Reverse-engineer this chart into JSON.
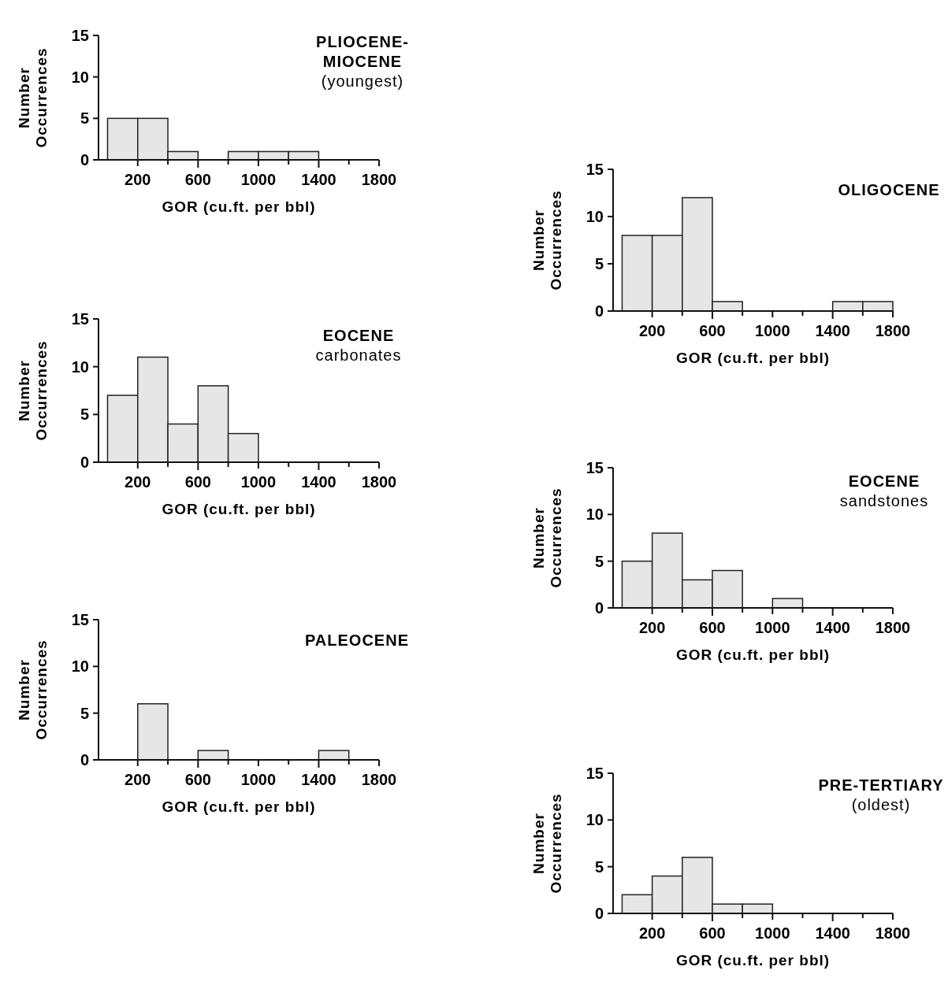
{
  "chart_data": [
    {
      "type": "histogram",
      "title": "PLIOCENE-\nMIOCENE",
      "subtitle": "(youngest)",
      "xlabel": "GOR (cu.ft. per bbl)",
      "ylabel": "Number\nOccurrences",
      "bins": [
        0,
        200,
        400,
        600,
        800,
        1000,
        1200,
        1400,
        1600,
        1800
      ],
      "values": [
        5,
        5,
        1,
        0,
        1,
        1,
        1,
        0,
        0
      ],
      "color": "#e6e6e6",
      "xlim": [
        -60,
        1800
      ],
      "ylim": [
        0,
        15
      ],
      "yticks": [
        0,
        5,
        10,
        15
      ],
      "xticks": [
        200,
        {
          "value": 400,
          "label": null
        },
        600,
        {
          "value": 800,
          "label": null
        },
        1000,
        {
          "value": 1200,
          "label": null
        },
        1400,
        {
          "value": 1600,
          "label": null
        },
        1800
      ],
      "grid": false
    },
    {
      "type": "histogram",
      "title": "OLIGOCENE",
      "xlabel": "GOR (cu.ft. per bbl)",
      "ylabel": "Number\nOccurrences",
      "bins": [
        0,
        200,
        400,
        600,
        800,
        1000,
        1200,
        1400,
        1600,
        1800
      ],
      "values": [
        8,
        8,
        12,
        1,
        0,
        0,
        0,
        1,
        1
      ],
      "color": "#e6e6e6",
      "xlim": [
        -60,
        1800
      ],
      "ylim": [
        0,
        15
      ],
      "yticks": [
        0,
        5,
        10,
        15
      ],
      "xticks": [
        200,
        {
          "value": 400,
          "label": null
        },
        600,
        {
          "value": 800,
          "label": null
        },
        1000,
        {
          "value": 1200,
          "label": null
        },
        1400,
        {
          "value": 1600,
          "label": null
        },
        1800
      ],
      "grid": false
    },
    {
      "type": "histogram",
      "title": "EOCENE",
      "subtitle": "carbonates",
      "xlabel": "GOR (cu.ft. per bbl)",
      "ylabel": "Number\nOccurrences",
      "bins": [
        0,
        200,
        400,
        600,
        800,
        1000,
        1200,
        1400,
        1600,
        1800
      ],
      "values": [
        7,
        11,
        4,
        8,
        3,
        0,
        0,
        0,
        0
      ],
      "color": "#e6e6e6",
      "xlim": [
        -60,
        1800
      ],
      "ylim": [
        0,
        15
      ],
      "yticks": [
        0,
        5,
        10,
        15
      ],
      "xticks": [
        200,
        {
          "value": 400,
          "label": null
        },
        600,
        {
          "value": 800,
          "label": null
        },
        1000,
        {
          "value": 1200,
          "label": null
        },
        1400,
        {
          "value": 1600,
          "label": null
        },
        1800
      ],
      "grid": false
    },
    {
      "type": "histogram",
      "title": "EOCENE",
      "subtitle": "sandstones",
      "xlabel": "GOR (cu.ft. per bbl)",
      "ylabel": "Number\nOccurrences",
      "bins": [
        0,
        200,
        400,
        600,
        800,
        1000,
        1200,
        1400,
        1600,
        1800
      ],
      "values": [
        5,
        8,
        3,
        4,
        0,
        1,
        0,
        0,
        0
      ],
      "color": "#e6e6e6",
      "xlim": [
        -60,
        1800
      ],
      "ylim": [
        0,
        15
      ],
      "yticks": [
        0,
        5,
        10,
        15
      ],
      "xticks": [
        200,
        {
          "value": 400,
          "label": null
        },
        600,
        {
          "value": 800,
          "label": null
        },
        1000,
        {
          "value": 1200,
          "label": null
        },
        1400,
        {
          "value": 1600,
          "label": null
        },
        1800
      ],
      "grid": false
    },
    {
      "type": "histogram",
      "title": "PALEOCENE",
      "xlabel": "GOR (cu.ft. per bbl)",
      "ylabel": "Number\nOccurrences",
      "bins": [
        0,
        200,
        400,
        600,
        800,
        1000,
        1200,
        1400,
        1600,
        1800
      ],
      "values": [
        0,
        6,
        0,
        1,
        0,
        0,
        0,
        1,
        0
      ],
      "color": "#e6e6e6",
      "xlim": [
        -60,
        1800
      ],
      "ylim": [
        0,
        15
      ],
      "yticks": [
        0,
        5,
        10,
        15
      ],
      "xticks": [
        200,
        {
          "value": 400,
          "label": null
        },
        600,
        {
          "value": 800,
          "label": null
        },
        1000,
        {
          "value": 1200,
          "label": null
        },
        1400,
        {
          "value": 1600,
          "label": null
        },
        1800
      ],
      "grid": false
    },
    {
      "type": "histogram",
      "title": "PRE-TERTIARY",
      "subtitle": "(oldest)",
      "xlabel": "GOR (cu.ft. per bbl)",
      "ylabel": "Number\nOccurrences",
      "bins": [
        0,
        200,
        400,
        600,
        800,
        1000,
        1200,
        1400,
        1600,
        1800
      ],
      "values": [
        2,
        4,
        6,
        1,
        1,
        0,
        0,
        0,
        0
      ],
      "color": "#e6e6e6",
      "xlim": [
        -60,
        1800
      ],
      "ylim": [
        0,
        15
      ],
      "yticks": [
        0,
        5,
        10,
        15
      ],
      "xticks": [
        200,
        {
          "value": 400,
          "label": null
        },
        600,
        {
          "value": 800,
          "label": null
        },
        1000,
        {
          "value": 1200,
          "label": null
        },
        1400,
        {
          "value": 1600,
          "label": null
        },
        1800
      ],
      "grid": false
    }
  ]
}
